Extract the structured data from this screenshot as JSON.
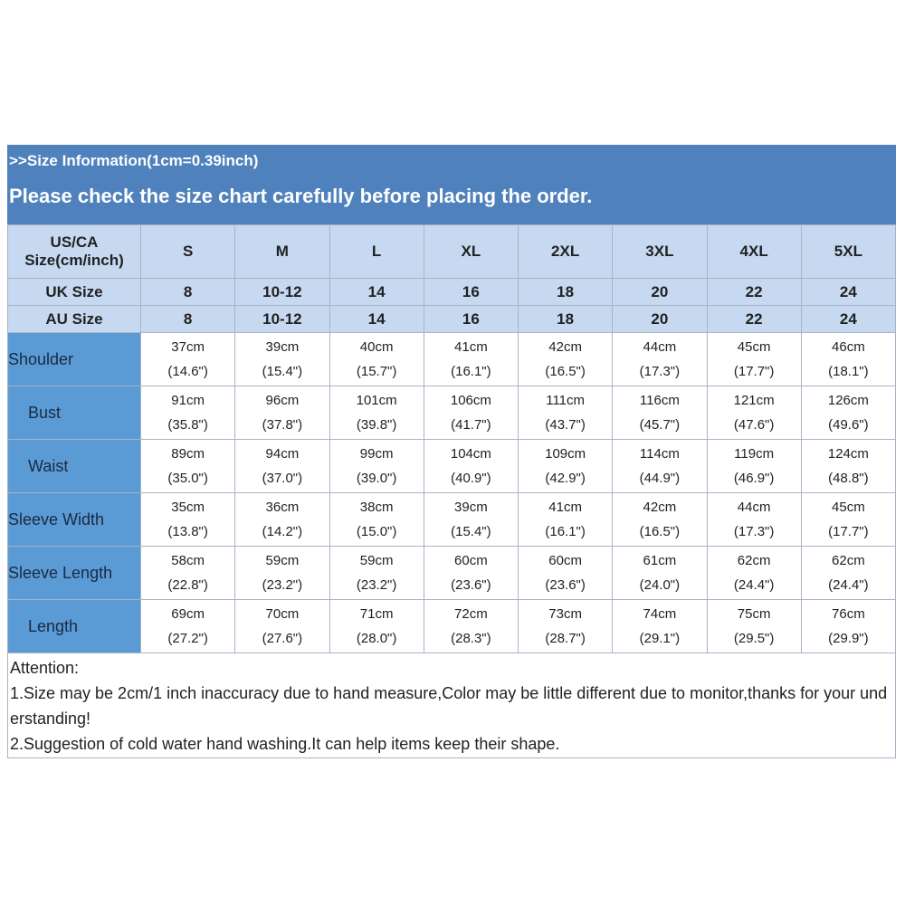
{
  "header": {
    "info": ">>Size Information(1cm=0.39inch)",
    "notice": "Please check the size chart carefully before placing the order."
  },
  "table": {
    "corner": "US/CA Size(cm/inch)",
    "sizes": [
      "S",
      "M",
      "L",
      "XL",
      "2XL",
      "3XL",
      "4XL",
      "5XL"
    ],
    "uk": {
      "label": "UK Size",
      "values": [
        "8",
        "10-12",
        "14",
        "16",
        "18",
        "20",
        "22",
        "24"
      ]
    },
    "au": {
      "label": "AU Size",
      "values": [
        "8",
        "10-12",
        "14",
        "16",
        "18",
        "20",
        "22",
        "24"
      ]
    },
    "rows": [
      {
        "label": "Shoulder",
        "cm": [
          "37cm",
          "39cm",
          "40cm",
          "41cm",
          "42cm",
          "44cm",
          "45cm",
          "46cm"
        ],
        "inch": [
          "(14.6\")",
          "(15.4\")",
          "(15.7\")",
          "(16.1\")",
          "(16.5\")",
          "(17.3\")",
          "(17.7\")",
          "(18.1\")"
        ]
      },
      {
        "label": "Bust",
        "cm": [
          "91cm",
          "96cm",
          "101cm",
          "106cm",
          "111cm",
          "116cm",
          "121cm",
          "126cm"
        ],
        "inch": [
          "(35.8\")",
          "(37.8\")",
          "(39.8\")",
          "(41.7\")",
          "(43.7\")",
          "(45.7\")",
          "(47.6\")",
          "(49.6\")"
        ]
      },
      {
        "label": "Waist",
        "cm": [
          "89cm",
          "94cm",
          "99cm",
          "104cm",
          "109cm",
          "114cm",
          "119cm",
          "124cm"
        ],
        "inch": [
          "(35.0\")",
          "(37.0\")",
          "(39.0\")",
          "(40.9\")",
          "(42.9\")",
          "(44.9\")",
          "(46.9\")",
          "(48.8\")"
        ]
      },
      {
        "label": "Sleeve Width",
        "cm": [
          "35cm",
          "36cm",
          "38cm",
          "39cm",
          "41cm",
          "42cm",
          "44cm",
          "45cm"
        ],
        "inch": [
          "(13.8\")",
          "(14.2\")",
          "(15.0\")",
          "(15.4\")",
          "(16.1\")",
          "(16.5\")",
          "(17.3\")",
          "(17.7\")"
        ]
      },
      {
        "label": "Sleeve Length",
        "cm": [
          "58cm",
          "59cm",
          "59cm",
          "60cm",
          "60cm",
          "61cm",
          "62cm",
          "62cm"
        ],
        "inch": [
          "(22.8\")",
          "(23.2\")",
          "(23.2\")",
          "(23.6\")",
          "(23.6\")",
          "(24.0\")",
          "(24.4\")",
          "(24.4\")"
        ]
      },
      {
        "label": "Length",
        "cm": [
          "69cm",
          "70cm",
          "71cm",
          "72cm",
          "73cm",
          "74cm",
          "75cm",
          "76cm"
        ],
        "inch": [
          "(27.2\")",
          "(27.6\")",
          "(28.0\")",
          "(28.3\")",
          "(28.7\")",
          "(29.1\")",
          "(29.5\")",
          "(29.9\")"
        ]
      }
    ]
  },
  "notes": {
    "title": "Attention:",
    "items": [
      "1.Size may be 2cm/1 inch inaccuracy due to hand measure,Color may be little different due to monitor,thanks for your understanding!",
      "2.Suggestion of cold water hand washing.It can help items keep their shape."
    ]
  }
}
